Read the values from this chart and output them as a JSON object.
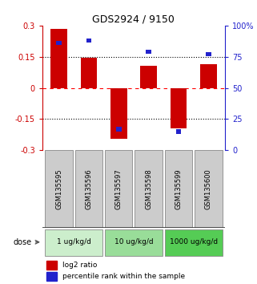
{
  "title": "GDS2924 / 9150",
  "samples": [
    "GSM135595",
    "GSM135596",
    "GSM135597",
    "GSM135598",
    "GSM135599",
    "GSM135600"
  ],
  "log2_ratio": [
    0.285,
    0.145,
    -0.245,
    0.105,
    -0.195,
    0.115
  ],
  "percentile_rank_raw": [
    86,
    88,
    17,
    79,
    15,
    77
  ],
  "dose_groups": [
    {
      "label": "1 ug/kg/d",
      "cols": [
        0,
        1
      ],
      "color": "#cceecc"
    },
    {
      "label": "10 ug/kg/d",
      "cols": [
        2,
        3
      ],
      "color": "#99dd99"
    },
    {
      "label": "1000 ug/kg/d",
      "cols": [
        4,
        5
      ],
      "color": "#55cc55"
    }
  ],
  "red_color": "#cc0000",
  "blue_color": "#2222cc",
  "sample_box_color": "#cccccc",
  "ylim": [
    -0.3,
    0.3
  ],
  "yticks_left": [
    -0.3,
    -0.15,
    0,
    0.15,
    0.3
  ],
  "yticks_right": [
    0,
    25,
    50,
    75,
    100
  ],
  "ytick_labels_left": [
    "-0.3",
    "-0.15",
    "0",
    "0.15",
    "0.3"
  ],
  "ytick_labels_right": [
    "0",
    "25",
    "50",
    "75",
    "100%"
  ],
  "legend_labels": [
    "log2 ratio",
    "percentile rank within the sample"
  ],
  "dose_label": "dose"
}
